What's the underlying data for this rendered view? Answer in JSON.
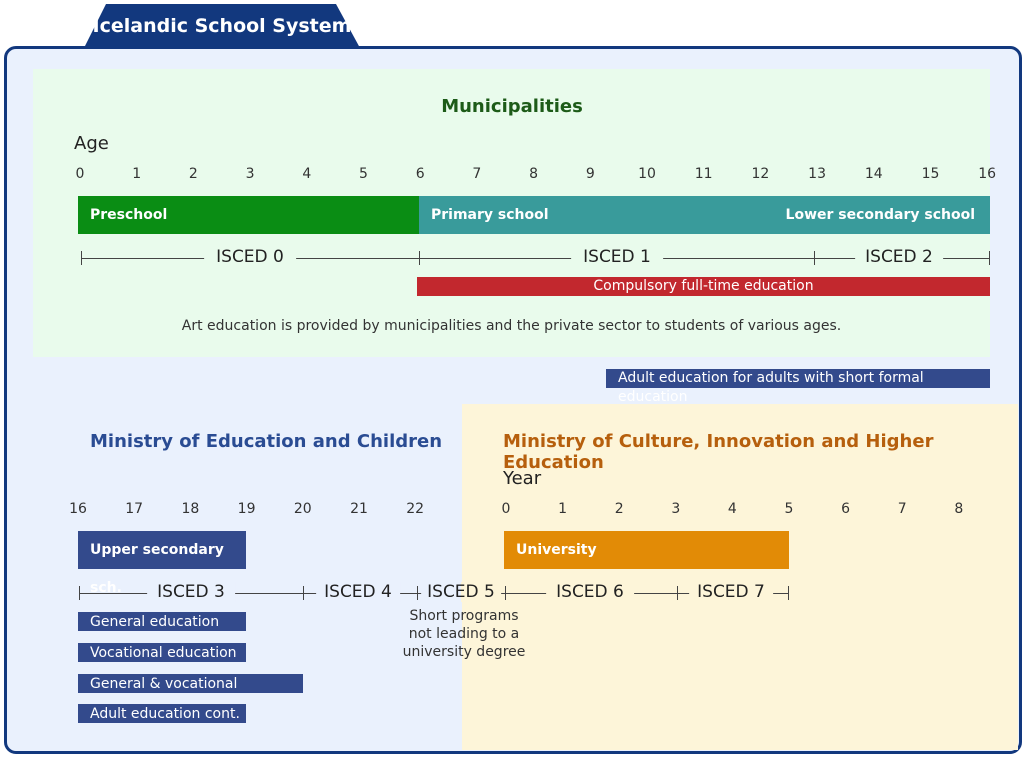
{
  "title": "Icelandic School System",
  "municipalities": {
    "heading": "Municipalities",
    "age_label": "Age",
    "age_ticks": [
      "0",
      "1",
      "2",
      "3",
      "4",
      "5",
      "6",
      "7",
      "8",
      "9",
      "10",
      "11",
      "12",
      "13",
      "14",
      "15",
      "16"
    ],
    "bars": {
      "preschool": "Preschool",
      "primary": "Primary school",
      "lower_secondary": "Lower secondary school"
    },
    "isced": [
      "ISCED 0",
      "ISCED 1",
      "ISCED 2"
    ],
    "compulsory": "Compulsory full-time education",
    "art_note": "Art education is provided by municipalities and the private sector to students of various ages."
  },
  "adult_note": "Adult education for adults with short formal education",
  "ministry_education": {
    "heading": "Ministry of Education and Children",
    "age_ticks": [
      "16",
      "17",
      "18",
      "19",
      "20",
      "21",
      "22"
    ],
    "upper_secondary": "Upper secondary sch.",
    "isced": [
      "ISCED 3",
      "ISCED 4",
      "ISCED 5"
    ],
    "tracks": [
      "General education",
      "Vocational education",
      "General & vocational",
      "Adult education cont."
    ],
    "isced5_note": [
      "Short programs",
      "not leading to a",
      "university degree"
    ]
  },
  "ministry_culture": {
    "heading": "Ministry of Culture, Innovation and Higher Education",
    "year_label": "Year",
    "year_ticks": [
      "0",
      "1",
      "2",
      "3",
      "4",
      "5",
      "6",
      "7",
      "8"
    ],
    "university": "University",
    "isced": [
      "ISCED 6",
      "ISCED 7"
    ]
  },
  "colors": {
    "navy": "#12387e",
    "preschool": "#0a8d14",
    "primary": "#399b9b",
    "compulsory": "#c2282e",
    "blue_pill": "#334a8c",
    "university": "#e28b06"
  }
}
